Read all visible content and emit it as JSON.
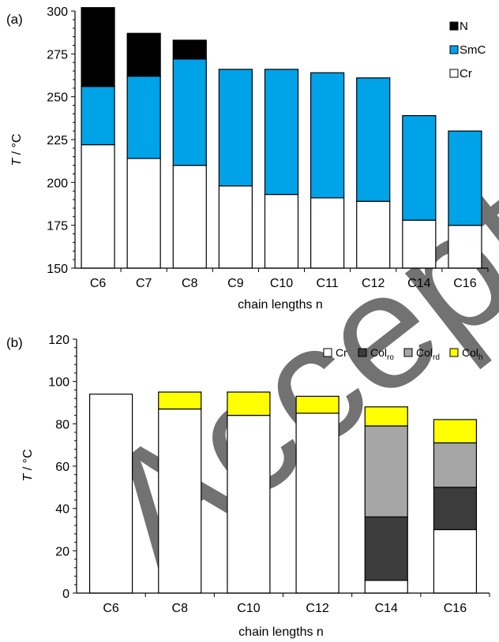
{
  "watermark": "Accepted",
  "chart_data": [
    {
      "panel_label": "(a)",
      "type": "bar",
      "stacking": "floating-ranges",
      "xlabel": "chain lengths n",
      "ylabel_italic": "T",
      "ylabel_rest": " / °C",
      "ylim": [
        150,
        300
      ],
      "yticks": [
        150,
        175,
        200,
        225,
        250,
        275,
        300
      ],
      "categories": [
        "C6",
        "C7",
        "C8",
        "C9",
        "C10",
        "C11",
        "C12",
        "C14",
        "C16"
      ],
      "legend_position": "top-right",
      "series": [
        {
          "name": "Cr",
          "color": "#ffffff",
          "ranges": [
            [
              150,
              222
            ],
            [
              150,
              214
            ],
            [
              150,
              210
            ],
            [
              150,
              198
            ],
            [
              150,
              193
            ],
            [
              150,
              191
            ],
            [
              150,
              189
            ],
            [
              150,
              178
            ],
            [
              150,
              175
            ]
          ]
        },
        {
          "name": "SmC",
          "color": "#00a2e8",
          "ranges": [
            [
              222,
              256
            ],
            [
              214,
              262
            ],
            [
              210,
              272
            ],
            [
              198,
              266
            ],
            [
              193,
              266
            ],
            [
              191,
              264
            ],
            [
              189,
              261
            ],
            [
              178,
              239
            ],
            [
              175,
              230
            ]
          ]
        },
        {
          "name": "N",
          "color": "#000000",
          "ranges": [
            [
              256,
              302
            ],
            [
              262,
              287
            ],
            [
              272,
              283
            ],
            null,
            null,
            null,
            null,
            null,
            null
          ]
        }
      ],
      "legend": [
        {
          "name": "N",
          "color": "#000000"
        },
        {
          "name": "SmC",
          "color": "#00a2e8"
        },
        {
          "name": "Cr",
          "color": "#ffffff"
        }
      ]
    },
    {
      "panel_label": "(b)",
      "type": "bar",
      "stacking": "floating-ranges",
      "xlabel": "chain lengths n",
      "ylabel_italic": "T",
      "ylabel_rest": " / °C",
      "ylim": [
        0,
        120
      ],
      "yticks": [
        0,
        20,
        40,
        60,
        80,
        100,
        120
      ],
      "categories": [
        "C6",
        "C8",
        "C10",
        "C12",
        "C14",
        "C16"
      ],
      "legend_position": "top-right",
      "series": [
        {
          "name": "Cr",
          "color": "#ffffff",
          "ranges": [
            [
              0,
              94
            ],
            [
              0,
              87
            ],
            [
              0,
              84
            ],
            [
              0,
              85
            ],
            [
              0,
              6
            ],
            [
              0,
              30
            ]
          ]
        },
        {
          "name": "Col_ro",
          "color": "#3c3c3c",
          "ranges": [
            null,
            null,
            null,
            null,
            [
              6,
              36
            ],
            [
              30,
              50
            ]
          ]
        },
        {
          "name": "Col_rd",
          "color": "#a6a6a6",
          "ranges": [
            null,
            null,
            null,
            null,
            [
              36,
              79
            ],
            [
              50,
              71
            ]
          ]
        },
        {
          "name": "Col_h",
          "color": "#ffff00",
          "ranges": [
            null,
            [
              87,
              95
            ],
            [
              84,
              95
            ],
            [
              85,
              93
            ],
            [
              79,
              88
            ],
            [
              71,
              82
            ]
          ]
        }
      ],
      "legend": [
        {
          "base": "Cr",
          "sub": "",
          "color": "#ffffff"
        },
        {
          "base": "Col",
          "sub": "ro",
          "color": "#3c3c3c"
        },
        {
          "base": "Col",
          "sub": "rd",
          "color": "#a6a6a6"
        },
        {
          "base": "Col",
          "sub": "h",
          "color": "#ffff00"
        }
      ]
    }
  ]
}
